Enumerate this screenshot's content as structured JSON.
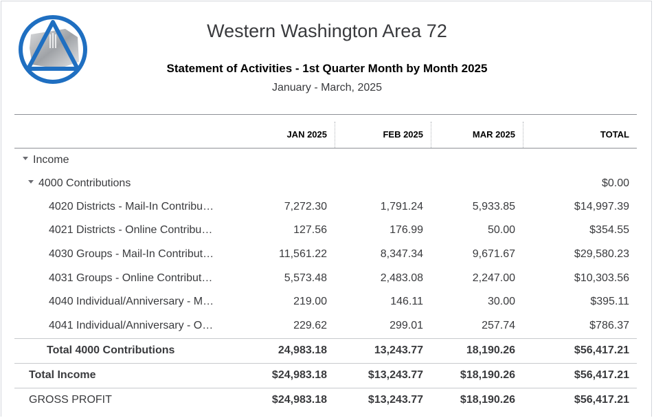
{
  "header": {
    "company_name": "Western Washington Area 72",
    "report_title": "Statement of Activities - 1st Quarter Month by Month 2025",
    "date_range": "January - March, 2025"
  },
  "columns": [
    "JAN 2025",
    "FEB 2025",
    "MAR 2025",
    "TOTAL"
  ],
  "income_section": {
    "label": "Income"
  },
  "contributions_group": {
    "label": "4000 Contributions",
    "total": "$0.00"
  },
  "rows": [
    {
      "label": "4020 Districts - Mail-In Contribu…",
      "jan": "7,272.30",
      "feb": "1,791.24",
      "mar": "5,933.85",
      "total": "$14,997.39"
    },
    {
      "label": "4021 Districts - Online Contribu…",
      "jan": "127.56",
      "feb": "176.99",
      "mar": "50.00",
      "total": "$354.55"
    },
    {
      "label": "4030 Groups - Mail-In Contribut…",
      "jan": "11,561.22",
      "feb": "8,347.34",
      "mar": "9,671.67",
      "total": "$29,580.23"
    },
    {
      "label": "4031 Groups - Online Contribut…",
      "jan": "5,573.48",
      "feb": "2,483.08",
      "mar": "2,247.00",
      "total": "$10,303.56"
    },
    {
      "label": "4040 Individual/Anniversary - M…",
      "jan": "219.00",
      "feb": "146.11",
      "mar": "30.00",
      "total": "$395.11"
    },
    {
      "label": "4041 Individual/Anniversary - O…",
      "jan": "229.62",
      "feb": "299.01",
      "mar": "257.74",
      "total": "$786.37"
    }
  ],
  "total_contributions": {
    "label": "Total 4000 Contributions",
    "jan": "24,983.18",
    "feb": "13,243.77",
    "mar": "18,190.26",
    "total": "$56,417.21"
  },
  "total_income": {
    "label": "Total Income",
    "jan": "$24,983.18",
    "feb": "$13,243.77",
    "mar": "$18,190.26",
    "total": "$56,417.21"
  },
  "gross_profit": {
    "label": "GROSS PROFIT",
    "jan": "$24,983.18",
    "feb": "$13,243.77",
    "mar": "$18,190.26",
    "total": "$56,417.21"
  },
  "logo": {
    "icon": "circle-triangle-logo",
    "ring_color": "#1f6fc1"
  }
}
